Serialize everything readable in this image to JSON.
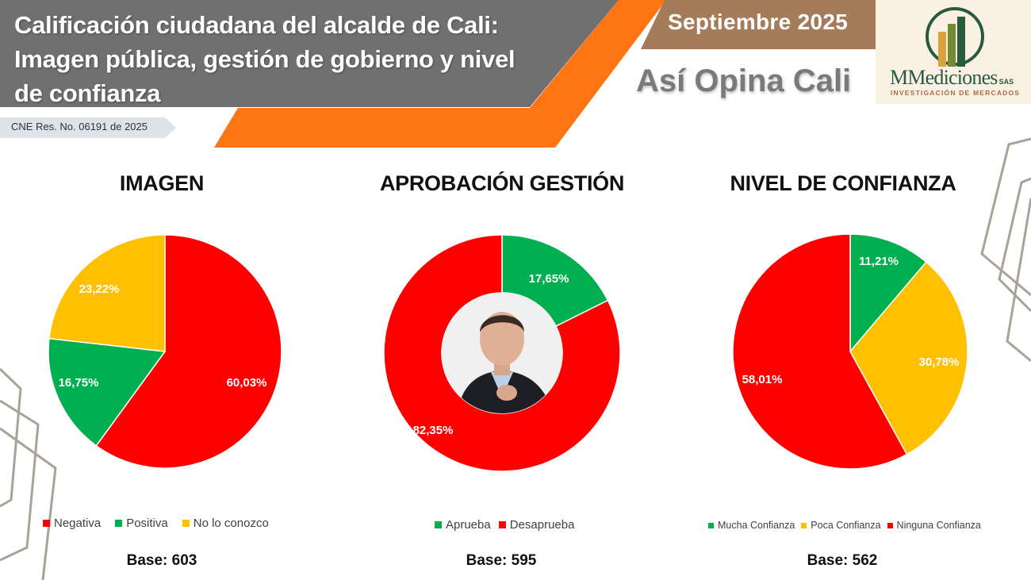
{
  "header": {
    "title_line1": "Calificación ciudadana del alcalde de Cali:",
    "title_line2": "Imagen pública, gestión de gobierno y nivel",
    "title_line3": "de confianza",
    "resolution": "CNE Res. No. 06191 de 2025",
    "date": "Septiembre 2025",
    "tagline": "Así Opina Cali"
  },
  "logo": {
    "name": "MMediciones",
    "suffix": "SAS",
    "subtitle": "INVESTIGACIÓN DE MERCADOS",
    "icon": "bar-chart-circle-icon"
  },
  "colors": {
    "red": "#ff0000",
    "green": "#00b050",
    "yellow": "#ffc000",
    "header_gray": "#707070",
    "orange": "#ff7514",
    "brown": "#a47c5a",
    "logo_green": "#285a3c"
  },
  "chart_data": [
    {
      "type": "pie",
      "title": "IMAGEN",
      "categories": [
        "Negativa",
        "Positiva",
        "No lo conozco"
      ],
      "values": [
        60.03,
        16.75,
        23.22
      ],
      "labels": [
        "60,03%",
        "16,75%",
        "23,22%"
      ],
      "colors": [
        "#ff0000",
        "#00b050",
        "#ffc000"
      ],
      "legend_position": "bottom",
      "base": "Base: 603"
    },
    {
      "type": "pie",
      "subtype": "donut",
      "title": "APROBACIÓN GESTIÓN",
      "categories": [
        "Aprueba",
        "Desaprueba"
      ],
      "values": [
        17.65,
        82.35
      ],
      "labels": [
        "17,65%",
        "82,35%"
      ],
      "colors": [
        "#00b050",
        "#ff0000"
      ],
      "legend_position": "bottom",
      "base": "Base: 595"
    },
    {
      "type": "pie",
      "title": "NIVEL DE CONFIANZA",
      "categories": [
        "Mucha Confianza",
        "Poca Confianza",
        "Ninguna Confianza"
      ],
      "values": [
        11.21,
        30.78,
        58.01
      ],
      "labels": [
        "11,21%",
        "30,78%",
        "58,01%"
      ],
      "colors": [
        "#00b050",
        "#ffc000",
        "#ff0000"
      ],
      "legend_position": "bottom",
      "base": "Base: 562"
    }
  ]
}
